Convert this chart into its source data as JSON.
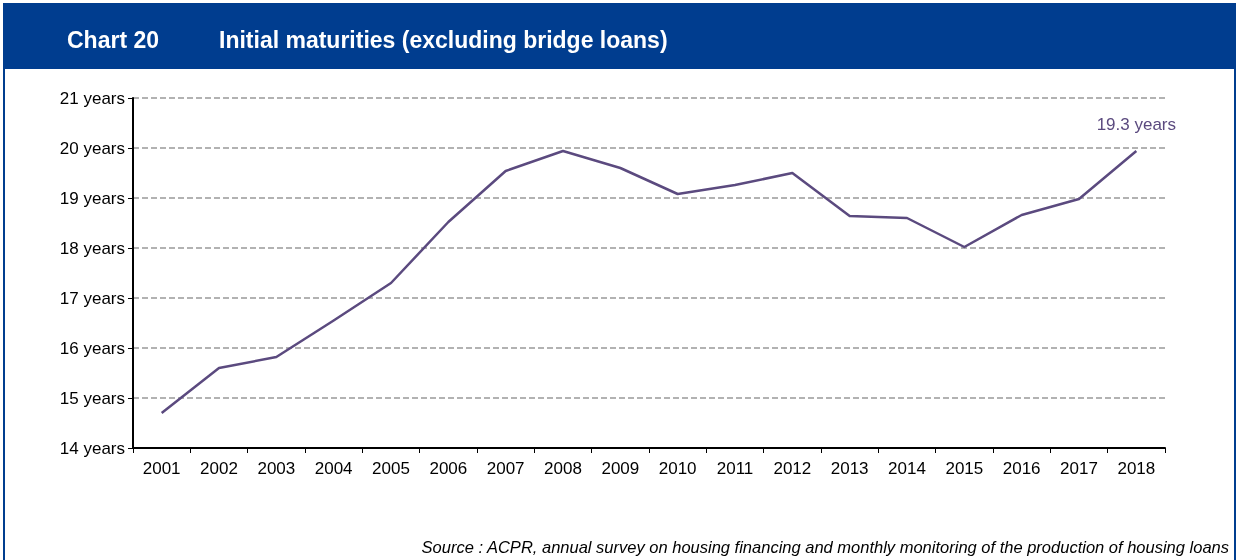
{
  "chart_data": {
    "type": "line",
    "title": "Chart 20",
    "subtitle": "Initial maturities (excluding bridge loans)",
    "categories": [
      "2001",
      "2002",
      "2003",
      "2004",
      "2005",
      "2006",
      "2007",
      "2008",
      "2009",
      "2010",
      "2011",
      "2012",
      "2013",
      "2014",
      "2015",
      "2016",
      "2017",
      "2018"
    ],
    "series": [
      {
        "color": "#5b4a7f",
        "values": [
          14.7,
          15.6,
          15.82,
          16.55,
          17.3,
          18.52,
          19.54,
          19.94,
          19.6,
          19.08,
          19.26,
          19.5,
          18.64,
          18.6,
          18.02,
          18.66,
          18.98,
          19.94
        ]
      }
    ],
    "ylim": [
      14,
      21
    ],
    "yticks": [
      {
        "value": 14,
        "label": "14 years"
      },
      {
        "value": 15,
        "label": "15 years"
      },
      {
        "value": 16,
        "label": "16 years"
      },
      {
        "value": 17,
        "label": "17 years"
      },
      {
        "value": 18,
        "label": "18 years"
      },
      {
        "value": 19,
        "label": "19 years"
      },
      {
        "value": 20,
        "label": "20 years"
      },
      {
        "value": 21,
        "label": "21 years"
      }
    ],
    "grid": "y",
    "marker": "none",
    "line_style": "solid",
    "annotations": [
      {
        "text": "19.3 years",
        "x": "2018",
        "y": 19.94
      },
      "Source : ACPR, annual survey on housing financing and monthly monitoring of the production of housing loans"
    ]
  }
}
